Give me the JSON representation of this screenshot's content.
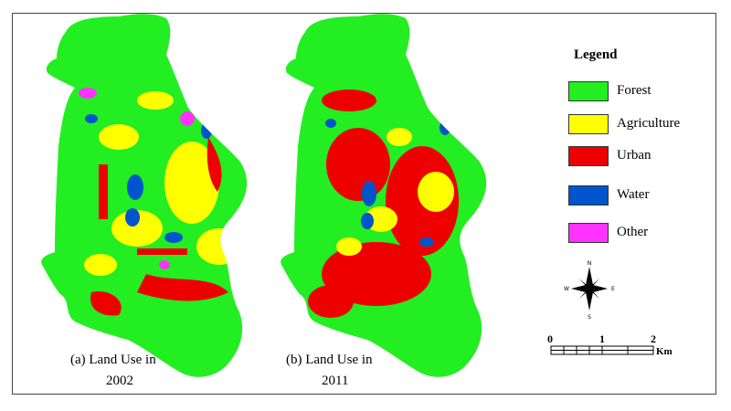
{
  "maps": [
    {
      "caption_line1": "(a) Land Use in",
      "caption_line2": "2002"
    },
    {
      "caption_line1": "(b) Land Use in",
      "caption_line2": "2011"
    }
  ],
  "legend": {
    "title": "Legend",
    "items": [
      {
        "label": "Forest",
        "color": "#22ee22"
      },
      {
        "label": "Agriculture",
        "color": "#ffff00"
      },
      {
        "label": "Urban",
        "color": "#ee0000"
      },
      {
        "label": "Water",
        "color": "#0055cc"
      },
      {
        "label": "Other",
        "color": "#ff33ff"
      }
    ]
  },
  "north_arrow": {
    "n": "N",
    "s": "S",
    "e": "E",
    "w": "W"
  },
  "scale_bar": {
    "ticks": [
      "0",
      "1",
      "2"
    ],
    "unit": "Km"
  }
}
